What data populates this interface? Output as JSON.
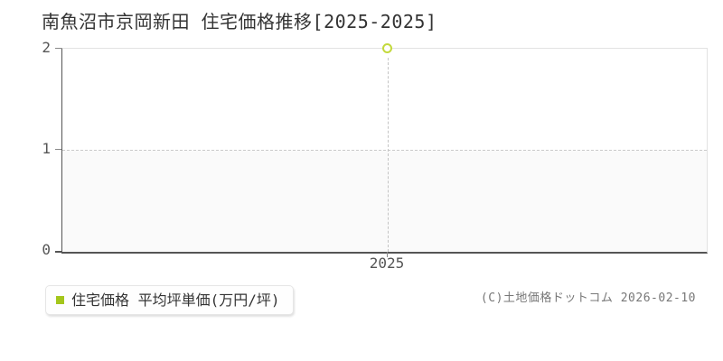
{
  "title": "南魚沼市京岡新田 住宅価格推移[2025-2025]",
  "axes": {
    "y_ticks": [
      "2",
      "1",
      "0"
    ],
    "x_ticks": [
      "2025"
    ]
  },
  "legend": {
    "label": "住宅価格 平均坪単価(万円/坪)"
  },
  "footer": {
    "copyright": "(C)土地価格ドットコム 2026-02-10"
  },
  "colors": {
    "series_marker_stroke": "#c3d93c",
    "legend_swatch": "#a4c61c",
    "axis_line": "#555555",
    "grid_dashed": "#c9c9c9",
    "lower_band": "#fafafa",
    "title_text": "#333333",
    "tick_text": "#555555",
    "copyright_text": "#777777"
  },
  "chart_data": {
    "type": "line",
    "title": "南魚沼市京岡新田 住宅価格推移[2025-2025]",
    "x": [
      2025
    ],
    "series": [
      {
        "name": "住宅価格 平均坪単価(万円/坪)",
        "values": [
          2
        ]
      }
    ],
    "xlabel": "",
    "ylabel": "平均坪単価(万円/坪)",
    "xlim": [
      2025,
      2025
    ],
    "ylim": [
      0,
      2
    ],
    "yticks": [
      0,
      1,
      2
    ],
    "xticks": [
      2025
    ],
    "grid": "dashed",
    "marker": "open-circle",
    "legend_position": "bottom-left-outside"
  }
}
